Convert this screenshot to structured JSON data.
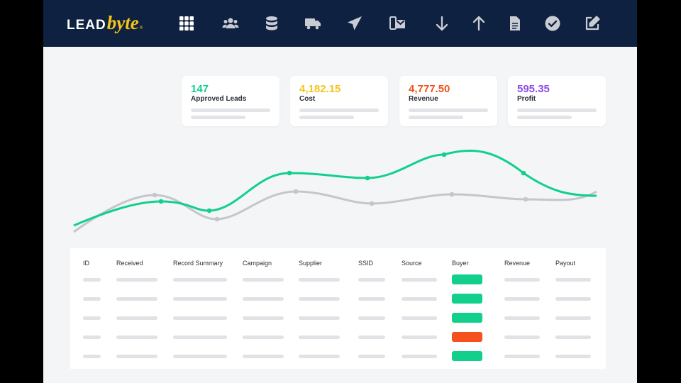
{
  "app": {
    "logo_lead": "LEAD",
    "logo_byte": "byte",
    "logo_reg": "®"
  },
  "nav": {
    "icons": [
      "grid-icon",
      "users-icon",
      "database-icon",
      "truck-icon",
      "send-icon",
      "mobile-mail-icon",
      "arrow-down-icon",
      "arrow-up-icon",
      "document-icon",
      "check-circle-icon",
      "edit-icon"
    ],
    "color": "#c9ccd3"
  },
  "cards": [
    {
      "value": "147",
      "label": "Approved Leads",
      "color": "#12d08c"
    },
    {
      "value": "4,182.15",
      "label": "Cost",
      "color": "#f5c518"
    },
    {
      "value": "4,777.50",
      "label": "Revenue",
      "color": "#f4511e"
    },
    {
      "value": "595.35",
      "label": "Profit",
      "color": "#8e4de6"
    }
  ],
  "table": {
    "headers": [
      "ID",
      "Received",
      "Record Summary",
      "Campaign",
      "Supplier",
      "SSID",
      "Source",
      "Buyer",
      "Revenue",
      "Payout"
    ],
    "buyer_status": [
      "green",
      "green",
      "green",
      "orange",
      "green"
    ],
    "status_colors": {
      "green": "#12d08c",
      "orange": "#f4511e"
    }
  },
  "colors": {
    "topbar": "#0f2140",
    "accent": "#f5c518",
    "line_green": "#12d08c",
    "line_gray": "#c4c6cb"
  }
}
